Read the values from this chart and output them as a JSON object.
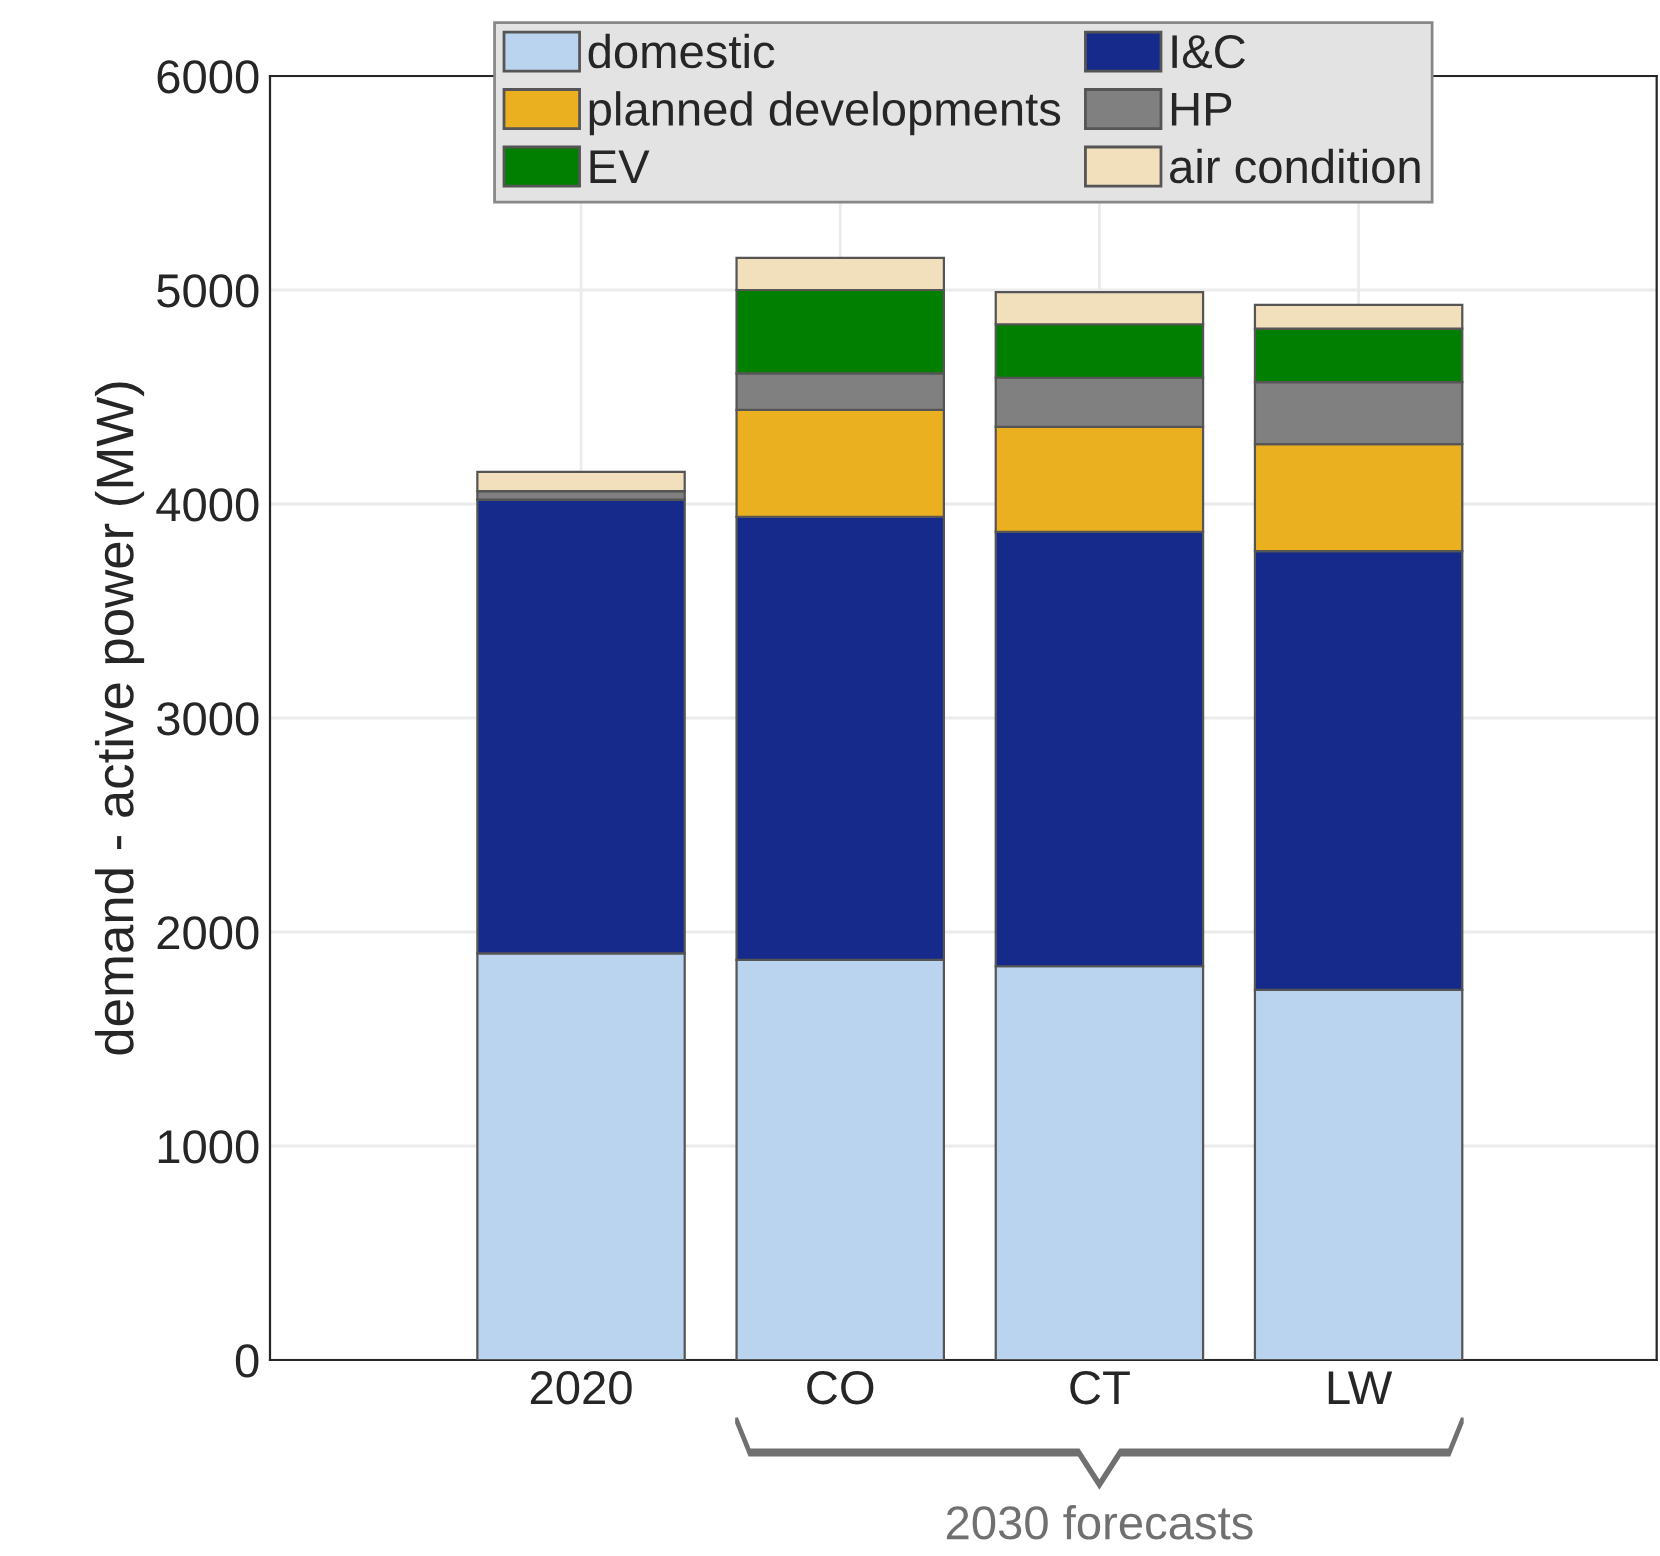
{
  "chart_data": {
    "type": "bar",
    "stacked": true,
    "ylabel": "demand - active power (MW)",
    "categories": [
      "2020",
      "CO",
      "CT",
      "LW"
    ],
    "series": [
      {
        "name": "domestic",
        "color": "#bad4f0",
        "values": [
          1900,
          1870,
          1840,
          1730
        ]
      },
      {
        "name": "I&C",
        "color": "#152a8a",
        "values": [
          2120,
          2070,
          2030,
          2050
        ]
      },
      {
        "name": "planned developments",
        "color": "#ebb020",
        "values": [
          0,
          500,
          490,
          500
        ]
      },
      {
        "name": "HP",
        "color": "#808080",
        "values": [
          40,
          170,
          230,
          290
        ]
      },
      {
        "name": "EV",
        "color": "#007f00",
        "values": [
          0,
          390,
          250,
          250
        ]
      },
      {
        "name": "air condition",
        "color": "#f2dfbb",
        "values": [
          90,
          150,
          150,
          110
        ]
      }
    ],
    "ylim": [
      0,
      6000
    ],
    "yticks": [
      0,
      1000,
      2000,
      3000,
      4000,
      5000,
      6000
    ],
    "grid": true,
    "legend": "top",
    "annotations": [
      "2030 forecasts"
    ]
  }
}
